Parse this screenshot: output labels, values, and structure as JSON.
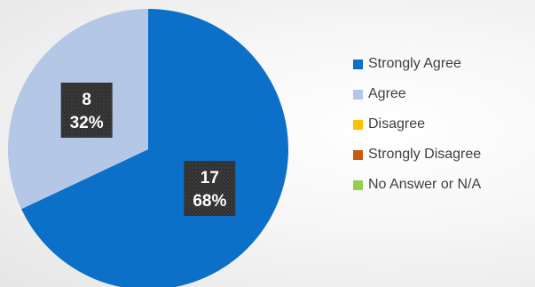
{
  "chart_data": {
    "type": "pie",
    "slices": [
      {
        "name": "Strongly Agree",
        "count": 17,
        "percent_label": "68%",
        "color": "#0c6fc8"
      },
      {
        "name": "Agree",
        "count": 8,
        "percent_label": "32%",
        "color": "#b4c7e7"
      },
      {
        "name": "Disagree",
        "count": 0,
        "percent_label": "0%",
        "color": "#ffc000"
      },
      {
        "name": "Strongly Disagree",
        "count": 0,
        "percent_label": "0%",
        "color": "#c55a11"
      },
      {
        "name": "No Answer or N/A",
        "count": 0,
        "percent_label": "0%",
        "color": "#92d050"
      }
    ],
    "legend_position": "right",
    "label_style": "dark-box"
  }
}
